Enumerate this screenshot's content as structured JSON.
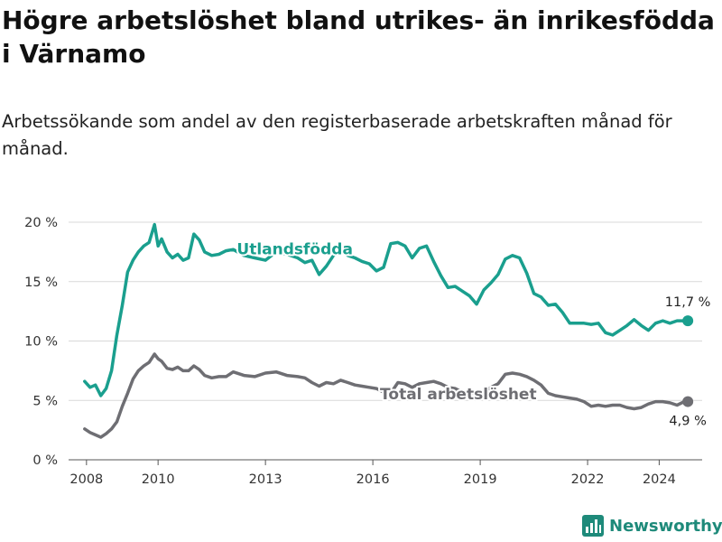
{
  "title": "Högre arbetslöshet bland utrikes- än inrikesfödda i Värnamo",
  "subtitle": "Arbetssökande som andel av den registerbaserade arbetskraften månad för månad.",
  "brand": {
    "name": "Newsworthy",
    "icon": "bar-chart-logo-icon",
    "color": "#1e8a7a"
  },
  "chart_data": {
    "type": "line",
    "ylim": [
      0,
      20
    ],
    "xlim": [
      2007.5,
      2025.2
    ],
    "yticks": [
      0,
      5,
      10,
      15,
      20
    ],
    "ytick_labels": [
      "0 %",
      "5 %",
      "10 %",
      "15 %",
      "20 %"
    ],
    "xticks": [
      2008,
      2010,
      2013,
      2016,
      2019,
      2022,
      2024
    ],
    "xtick_labels": [
      "2008",
      "2010",
      "2013",
      "2016",
      "2019",
      "2022",
      "2024"
    ],
    "grid": "horizontal",
    "series": [
      {
        "name": "Utlandsfödda",
        "color": "#1a9f8e",
        "end_label": "11,7 %",
        "x": [
          2007.95,
          2008.1,
          2008.25,
          2008.4,
          2008.55,
          2008.7,
          2008.85,
          2009.0,
          2009.15,
          2009.3,
          2009.45,
          2009.6,
          2009.75,
          2009.9,
          2010.0,
          2010.1,
          2010.25,
          2010.4,
          2010.55,
          2010.7,
          2010.85,
          2011.0,
          2011.15,
          2011.3,
          2011.5,
          2011.7,
          2011.9,
          2012.1,
          2012.4,
          2012.7,
          2013.0,
          2013.3,
          2013.6,
          2013.9,
          2014.1,
          2014.3,
          2014.5,
          2014.7,
          2014.9,
          2015.1,
          2015.3,
          2015.5,
          2015.7,
          2015.9,
          2016.1,
          2016.3,
          2016.5,
          2016.7,
          2016.9,
          2017.1,
          2017.3,
          2017.5,
          2017.7,
          2017.9,
          2018.1,
          2018.3,
          2018.5,
          2018.7,
          2018.9,
          2019.1,
          2019.3,
          2019.5,
          2019.7,
          2019.9,
          2020.1,
          2020.3,
          2020.5,
          2020.7,
          2020.9,
          2021.1,
          2021.3,
          2021.5,
          2021.7,
          2021.9,
          2022.1,
          2022.3,
          2022.5,
          2022.7,
          2022.9,
          2023.1,
          2023.3,
          2023.5,
          2023.7,
          2023.9,
          2024.1,
          2024.3,
          2024.5,
          2024.7,
          2024.8
        ],
        "y": [
          6.6,
          6.1,
          6.3,
          5.4,
          6.0,
          7.5,
          10.5,
          13.0,
          15.8,
          16.8,
          17.5,
          18.0,
          18.3,
          19.8,
          18.0,
          18.6,
          17.5,
          17.0,
          17.3,
          16.8,
          17.0,
          19.0,
          18.5,
          17.5,
          17.2,
          17.3,
          17.6,
          17.7,
          17.2,
          17.0,
          16.8,
          17.5,
          17.3,
          17.0,
          16.6,
          16.8,
          15.6,
          16.3,
          17.2,
          17.6,
          17.2,
          17.0,
          16.7,
          16.5,
          15.9,
          16.2,
          18.2,
          18.3,
          18.0,
          17.0,
          17.8,
          18.0,
          16.7,
          15.5,
          14.5,
          14.6,
          14.2,
          13.8,
          13.1,
          14.3,
          14.9,
          15.6,
          16.9,
          17.2,
          17.0,
          15.7,
          14.0,
          13.7,
          13.0,
          13.1,
          12.4,
          11.5,
          11.5,
          11.5,
          11.4,
          11.5,
          10.7,
          10.5,
          10.9,
          11.3,
          11.8,
          11.3,
          10.9,
          11.5,
          11.7,
          11.5,
          11.7,
          11.7,
          11.7
        ],
        "label": "Utlandsfödda",
        "label_pos": [
          2012.2,
          17.3
        ]
      },
      {
        "name": "Total arbetslöshet",
        "color": "#6e6e73",
        "end_label": "4,9 %",
        "x": [
          2007.95,
          2008.1,
          2008.25,
          2008.4,
          2008.55,
          2008.7,
          2008.85,
          2009.0,
          2009.15,
          2009.3,
          2009.45,
          2009.6,
          2009.75,
          2009.9,
          2010.0,
          2010.1,
          2010.25,
          2010.4,
          2010.55,
          2010.7,
          2010.85,
          2011.0,
          2011.15,
          2011.3,
          2011.5,
          2011.7,
          2011.9,
          2012.1,
          2012.4,
          2012.7,
          2013.0,
          2013.3,
          2013.6,
          2013.9,
          2014.1,
          2014.3,
          2014.5,
          2014.7,
          2014.9,
          2015.1,
          2015.3,
          2015.5,
          2015.7,
          2015.9,
          2016.1,
          2016.3,
          2016.5,
          2016.7,
          2016.9,
          2017.1,
          2017.3,
          2017.5,
          2017.7,
          2017.9,
          2018.1,
          2018.3,
          2018.5,
          2018.7,
          2018.9,
          2019.1,
          2019.3,
          2019.5,
          2019.7,
          2019.9,
          2020.1,
          2020.3,
          2020.5,
          2020.7,
          2020.9,
          2021.1,
          2021.3,
          2021.5,
          2021.7,
          2021.9,
          2022.1,
          2022.3,
          2022.5,
          2022.7,
          2022.9,
          2023.1,
          2023.3,
          2023.5,
          2023.7,
          2023.9,
          2024.1,
          2024.3,
          2024.5,
          2024.7,
          2024.8
        ],
        "y": [
          2.6,
          2.3,
          2.1,
          1.9,
          2.2,
          2.6,
          3.2,
          4.5,
          5.6,
          6.8,
          7.5,
          7.9,
          8.2,
          8.9,
          8.5,
          8.3,
          7.7,
          7.6,
          7.8,
          7.5,
          7.5,
          7.9,
          7.6,
          7.1,
          6.9,
          7.0,
          7.0,
          7.4,
          7.1,
          7.0,
          7.3,
          7.4,
          7.1,
          7.0,
          6.9,
          6.5,
          6.2,
          6.5,
          6.4,
          6.7,
          6.5,
          6.3,
          6.2,
          6.1,
          6.0,
          5.7,
          5.6,
          6.5,
          6.4,
          6.1,
          6.4,
          6.5,
          6.6,
          6.4,
          6.1,
          6.0,
          5.7,
          5.6,
          5.6,
          5.7,
          6.1,
          6.4,
          7.2,
          7.3,
          7.2,
          7.0,
          6.7,
          6.3,
          5.6,
          5.4,
          5.3,
          5.2,
          5.1,
          4.9,
          4.5,
          4.6,
          4.5,
          4.6,
          4.6,
          4.4,
          4.3,
          4.4,
          4.7,
          4.9,
          4.9,
          4.8,
          4.6,
          4.9,
          4.9
        ],
        "label": "Total arbetslöshet",
        "label_pos": [
          2016.2,
          5.1
        ]
      }
    ]
  }
}
